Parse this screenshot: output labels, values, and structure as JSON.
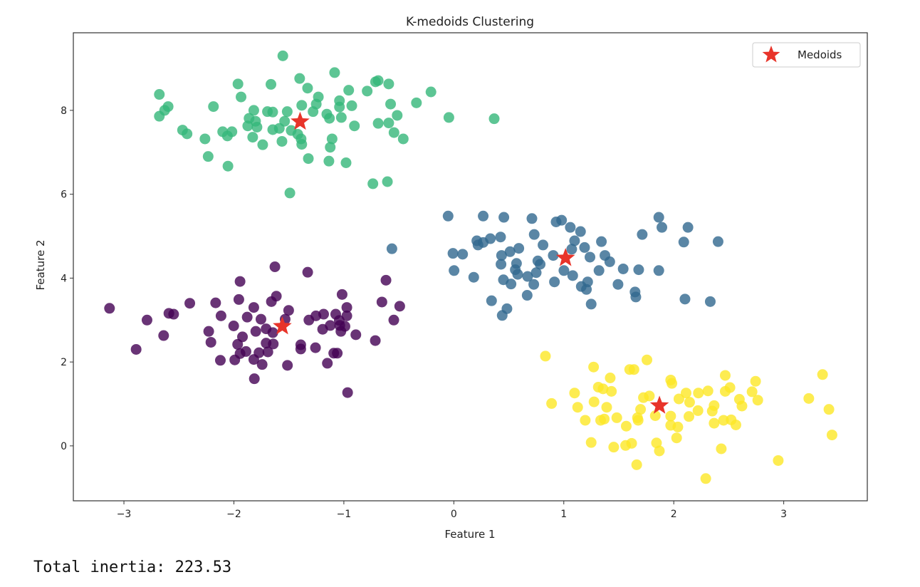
{
  "chart_data": {
    "type": "scatter",
    "title": "K-medoids Clustering",
    "xlabel": "Feature 1",
    "ylabel": "Feature 2",
    "xlim": [
      -3.46,
      3.76
    ],
    "ylim": [
      -1.31,
      9.85
    ],
    "xticks": [
      -3,
      -2,
      -1,
      0,
      1,
      2,
      3
    ],
    "xtick_labels": [
      "−3",
      "−2",
      "−1",
      "0",
      "1",
      "2",
      "3"
    ],
    "yticks": [
      0,
      2,
      4,
      6,
      8
    ],
    "ytick_labels": [
      "0",
      "2",
      "4",
      "6",
      "8"
    ],
    "grid": false,
    "legend": {
      "placement": "top-right",
      "entries": [
        "Medoids"
      ]
    },
    "marker_alpha": 0.8,
    "clusters": [
      {
        "color": "#440154",
        "points": [
          [
            -3.131,
            3.28
          ],
          [
            -2.79,
            3.0
          ],
          [
            -2.889,
            2.3
          ],
          [
            -2.639,
            2.63
          ],
          [
            -2.591,
            3.16
          ],
          [
            -2.548,
            3.14
          ],
          [
            -2.401,
            3.4
          ],
          [
            -2.166,
            3.41
          ],
          [
            -2.117,
            3.1
          ],
          [
            -2.229,
            2.73
          ],
          [
            -2.209,
            2.47
          ],
          [
            -2.123,
            2.04
          ],
          [
            -1.944,
            3.92
          ],
          [
            -1.955,
            3.49
          ],
          [
            -2.002,
            2.86
          ],
          [
            -1.879,
            3.07
          ],
          [
            -1.819,
            3.3
          ],
          [
            -1.754,
            3.02
          ],
          [
            -1.922,
            2.6
          ],
          [
            -1.966,
            2.42
          ],
          [
            -1.89,
            2.25
          ],
          [
            -1.944,
            2.2
          ],
          [
            -1.992,
            2.05
          ],
          [
            -1.819,
            2.06
          ],
          [
            -1.772,
            2.22
          ],
          [
            -1.743,
            1.94
          ],
          [
            -1.814,
            1.6
          ],
          [
            -1.801,
            2.73
          ],
          [
            -1.707,
            2.79
          ],
          [
            -1.707,
            2.45
          ],
          [
            -1.642,
            2.43
          ],
          [
            -1.691,
            2.24
          ],
          [
            -1.627,
            4.27
          ],
          [
            -1.659,
            3.44
          ],
          [
            -1.614,
            3.57
          ],
          [
            -1.502,
            3.23
          ],
          [
            -1.534,
            3.02
          ],
          [
            -1.646,
            2.7
          ],
          [
            -1.513,
            1.92
          ],
          [
            -1.329,
            4.14
          ],
          [
            -1.318,
            3.0
          ],
          [
            -1.254,
            3.1
          ],
          [
            -1.184,
            3.14
          ],
          [
            -1.392,
            2.41
          ],
          [
            -1.392,
            2.31
          ],
          [
            -1.258,
            2.34
          ],
          [
            -1.193,
            2.78
          ],
          [
            -1.124,
            2.87
          ],
          [
            -1.074,
            3.14
          ],
          [
            -1.042,
            2.99
          ],
          [
            -1.016,
            3.61
          ],
          [
            -0.973,
            3.3
          ],
          [
            -0.973,
            3.1
          ],
          [
            -1.037,
            2.87
          ],
          [
            -1.027,
            2.73
          ],
          [
            -0.99,
            2.85
          ],
          [
            -1.092,
            2.21
          ],
          [
            -1.06,
            2.21
          ],
          [
            -1.15,
            1.97
          ],
          [
            -0.966,
            1.27
          ],
          [
            -0.891,
            2.65
          ],
          [
            -0.714,
            2.51
          ],
          [
            -0.654,
            3.43
          ],
          [
            -0.617,
            3.95
          ],
          [
            -0.546,
            3.0
          ],
          [
            -0.492,
            3.33
          ]
        ]
      },
      {
        "color": "#31688e",
        "points": [
          [
            -0.563,
            4.7
          ],
          [
            -0.052,
            5.48
          ],
          [
            0.267,
            5.48
          ],
          [
            0.455,
            5.45
          ],
          [
            0.71,
            5.42
          ],
          [
            0.93,
            5.34
          ],
          [
            0.98,
            5.38
          ],
          [
            1.059,
            5.21
          ],
          [
            1.152,
            5.11
          ],
          [
            1.864,
            5.45
          ],
          [
            1.892,
            5.21
          ],
          [
            2.129,
            5.21
          ],
          [
            1.713,
            5.04
          ],
          [
            0.731,
            5.04
          ],
          [
            0.425,
            4.98
          ],
          [
            0.332,
            4.94
          ],
          [
            0.209,
            4.89
          ],
          [
            0.267,
            4.85
          ],
          [
            0.22,
            4.79
          ],
          [
            1.098,
            4.89
          ],
          [
            2.091,
            4.86
          ],
          [
            2.403,
            4.87
          ],
          [
            1.342,
            4.87
          ],
          [
            0.811,
            4.79
          ],
          [
            0.591,
            4.71
          ],
          [
            0.511,
            4.63
          ],
          [
            1.189,
            4.73
          ],
          [
            -0.008,
            4.59
          ],
          [
            0.08,
            4.57
          ],
          [
            0.434,
            4.54
          ],
          [
            0.904,
            4.54
          ],
          [
            1.072,
            4.69
          ],
          [
            1.238,
            4.5
          ],
          [
            1.374,
            4.54
          ],
          [
            1.418,
            4.39
          ],
          [
            0.764,
            4.41
          ],
          [
            0.785,
            4.33
          ],
          [
            0.57,
            4.35
          ],
          [
            0.429,
            4.33
          ],
          [
            0.559,
            4.2
          ],
          [
            0.581,
            4.09
          ],
          [
            0.671,
            4.04
          ],
          [
            0.749,
            4.13
          ],
          [
            0.002,
            4.18
          ],
          [
            0.181,
            4.02
          ],
          [
            1.001,
            4.18
          ],
          [
            1.081,
            4.06
          ],
          [
            1.32,
            4.18
          ],
          [
            1.54,
            4.22
          ],
          [
            1.681,
            4.2
          ],
          [
            1.864,
            4.18
          ],
          [
            0.451,
            3.96
          ],
          [
            0.52,
            3.86
          ],
          [
            0.727,
            3.85
          ],
          [
            0.915,
            3.91
          ],
          [
            1.217,
            3.91
          ],
          [
            1.159,
            3.8
          ],
          [
            1.206,
            3.73
          ],
          [
            1.493,
            3.85
          ],
          [
            1.648,
            3.67
          ],
          [
            1.655,
            3.55
          ],
          [
            0.667,
            3.59
          ],
          [
            0.343,
            3.46
          ],
          [
            1.249,
            3.38
          ],
          [
            2.102,
            3.5
          ],
          [
            2.332,
            3.44
          ],
          [
            0.483,
            3.27
          ],
          [
            0.44,
            3.11
          ]
        ]
      },
      {
        "color": "#35b779",
        "points": [
          [
            -1.555,
            9.3
          ],
          [
            -1.084,
            8.9
          ],
          [
            -1.402,
            8.76
          ],
          [
            -1.963,
            8.63
          ],
          [
            -1.663,
            8.62
          ],
          [
            -0.712,
            8.68
          ],
          [
            -0.688,
            8.71
          ],
          [
            -0.592,
            8.63
          ],
          [
            -1.33,
            8.53
          ],
          [
            -2.678,
            8.38
          ],
          [
            -0.956,
            8.48
          ],
          [
            -0.788,
            8.46
          ],
          [
            -0.208,
            8.44
          ],
          [
            -1.935,
            8.32
          ],
          [
            -1.232,
            8.32
          ],
          [
            -1.04,
            8.23
          ],
          [
            -0.34,
            8.18
          ],
          [
            -2.598,
            8.09
          ],
          [
            -2.186,
            8.09
          ],
          [
            -1.383,
            8.12
          ],
          [
            -1.251,
            8.15
          ],
          [
            -0.928,
            8.11
          ],
          [
            -0.575,
            8.15
          ],
          [
            -1.04,
            8.08
          ],
          [
            -2.63,
            8.0
          ],
          [
            -1.819,
            8.0
          ],
          [
            -1.695,
            7.97
          ],
          [
            -1.647,
            7.96
          ],
          [
            -1.515,
            7.97
          ],
          [
            -1.28,
            7.97
          ],
          [
            -0.515,
            7.88
          ],
          [
            -2.678,
            7.86
          ],
          [
            -1.155,
            7.91
          ],
          [
            -1.131,
            7.81
          ],
          [
            -1.023,
            7.83
          ],
          [
            -0.045,
            7.83
          ],
          [
            0.367,
            7.8
          ],
          [
            -1.862,
            7.81
          ],
          [
            -1.803,
            7.74
          ],
          [
            -1.539,
            7.74
          ],
          [
            -0.688,
            7.69
          ],
          [
            -0.592,
            7.7
          ],
          [
            -0.904,
            7.63
          ],
          [
            -1.874,
            7.63
          ],
          [
            -1.79,
            7.6
          ],
          [
            -1.647,
            7.54
          ],
          [
            -1.587,
            7.57
          ],
          [
            -1.479,
            7.52
          ],
          [
            -2.467,
            7.53
          ],
          [
            -2.426,
            7.44
          ],
          [
            -2.102,
            7.49
          ],
          [
            -2.018,
            7.49
          ],
          [
            -2.059,
            7.39
          ],
          [
            -0.544,
            7.47
          ],
          [
            -1.419,
            7.43
          ],
          [
            -2.263,
            7.32
          ],
          [
            -1.829,
            7.36
          ],
          [
            -1.389,
            7.32
          ],
          [
            -1.107,
            7.32
          ],
          [
            -0.46,
            7.32
          ],
          [
            -1.563,
            7.26
          ],
          [
            -1.738,
            7.18
          ],
          [
            -1.383,
            7.19
          ],
          [
            -1.124,
            7.12
          ],
          [
            -2.234,
            6.9
          ],
          [
            -1.323,
            6.85
          ],
          [
            -1.136,
            6.79
          ],
          [
            -0.98,
            6.75
          ],
          [
            -2.054,
            6.67
          ],
          [
            -0.736,
            6.25
          ],
          [
            -0.604,
            6.3
          ],
          [
            -1.491,
            6.03
          ]
        ]
      },
      {
        "color": "#fde725",
        "points": [
          [
            0.833,
            2.14
          ],
          [
            1.271,
            1.88
          ],
          [
            1.756,
            2.05
          ],
          [
            1.599,
            1.82
          ],
          [
            1.638,
            1.82
          ],
          [
            1.422,
            1.62
          ],
          [
            1.972,
            1.57
          ],
          [
            1.983,
            1.49
          ],
          [
            2.468,
            1.68
          ],
          [
            2.744,
            1.54
          ],
          [
            3.353,
            1.7
          ],
          [
            1.098,
            1.26
          ],
          [
            1.314,
            1.4
          ],
          [
            1.357,
            1.36
          ],
          [
            1.433,
            1.3
          ],
          [
            1.724,
            1.15
          ],
          [
            1.778,
            1.19
          ],
          [
            2.047,
            1.12
          ],
          [
            2.112,
            1.26
          ],
          [
            2.224,
            1.26
          ],
          [
            2.311,
            1.31
          ],
          [
            2.468,
            1.3
          ],
          [
            2.511,
            1.39
          ],
          [
            2.712,
            1.29
          ],
          [
            2.764,
            1.09
          ],
          [
            2.597,
            1.11
          ],
          [
            2.62,
            0.95
          ],
          [
            3.228,
            1.13
          ],
          [
            0.889,
            1.01
          ],
          [
            1.126,
            0.92
          ],
          [
            1.275,
            1.05
          ],
          [
            1.39,
            0.92
          ],
          [
            2.144,
            1.04
          ],
          [
            2.367,
            0.96
          ],
          [
            2.22,
            0.84
          ],
          [
            2.35,
            0.83
          ],
          [
            1.698,
            0.87
          ],
          [
            1.832,
            0.72
          ],
          [
            1.972,
            0.71
          ],
          [
            2.138,
            0.7
          ],
          [
            1.67,
            0.67
          ],
          [
            1.676,
            0.61
          ],
          [
            1.482,
            0.67
          ],
          [
            1.335,
            0.61
          ],
          [
            1.368,
            0.64
          ],
          [
            1.195,
            0.61
          ],
          [
            1.568,
            0.47
          ],
          [
            1.972,
            0.49
          ],
          [
            2.037,
            0.45
          ],
          [
            2.367,
            0.54
          ],
          [
            2.453,
            0.61
          ],
          [
            2.522,
            0.62
          ],
          [
            2.565,
            0.5
          ],
          [
            2.026,
            0.19
          ],
          [
            3.411,
            0.87
          ],
          [
            3.439,
            0.26
          ],
          [
            1.249,
            0.08
          ],
          [
            1.454,
            -0.03
          ],
          [
            1.562,
            0.01
          ],
          [
            1.617,
            0.06
          ],
          [
            1.843,
            0.07
          ],
          [
            1.869,
            -0.12
          ],
          [
            2.432,
            -0.07
          ],
          [
            2.95,
            -0.35
          ],
          [
            1.663,
            -0.45
          ],
          [
            2.291,
            -0.78
          ]
        ]
      }
    ],
    "medoids": {
      "name": "Medoids",
      "color": "#e8342a",
      "points": [
        [
          -1.56,
          2.85
        ],
        [
          1.016,
          4.48
        ],
        [
          -1.398,
          7.73
        ],
        [
          1.87,
          0.96
        ]
      ]
    }
  },
  "output": {
    "text": "Total inertia: 223.53"
  }
}
